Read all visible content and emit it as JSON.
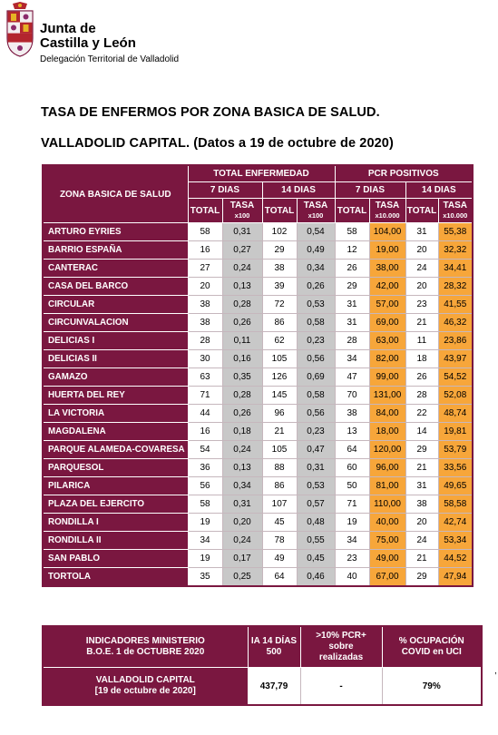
{
  "header": {
    "org_line1": "Junta de",
    "org_line2": "Castilla y León",
    "org_line3": "Delegación Territorial de Valladolid"
  },
  "title_line1": "TASA DE ENFERMOS POR ZONA BASICA DE SALUD.",
  "title_line2": "VALLADOLID CAPITAL. (Datos a 19 de octubre de 2020)",
  "table": {
    "zone_header": "ZONA BASICA DE SALUD",
    "group1": "TOTAL ENFERMEDAD",
    "group2": "PCR POSITIVOS",
    "days7": "7 DIAS",
    "days14": "14 DIAS",
    "total": "TOTAL",
    "tasa": "TASA",
    "x100": "x100",
    "x10000": "x10.000",
    "rows": [
      {
        "zone": "ARTURO EYRIES",
        "te7_total": "58",
        "te7_tasa": "0,31",
        "te14_total": "102",
        "te14_tasa": "0,54",
        "pcr7_total": "58",
        "pcr7_tasa": "104,00",
        "pcr14_total": "31",
        "pcr14_tasa": "55,38"
      },
      {
        "zone": "BARRIO ESPAÑA",
        "te7_total": "16",
        "te7_tasa": "0,27",
        "te14_total": "29",
        "te14_tasa": "0,49",
        "pcr7_total": "12",
        "pcr7_tasa": "19,00",
        "pcr14_total": "20",
        "pcr14_tasa": "32,32"
      },
      {
        "zone": "CANTERAC",
        "te7_total": "27",
        "te7_tasa": "0,24",
        "te14_total": "38",
        "te14_tasa": "0,34",
        "pcr7_total": "26",
        "pcr7_tasa": "38,00",
        "pcr14_total": "24",
        "pcr14_tasa": "34,41"
      },
      {
        "zone": "CASA DEL BARCO",
        "te7_total": "20",
        "te7_tasa": "0,13",
        "te14_total": "39",
        "te14_tasa": "0,26",
        "pcr7_total": "29",
        "pcr7_tasa": "42,00",
        "pcr14_total": "20",
        "pcr14_tasa": "28,32"
      },
      {
        "zone": "CIRCULAR",
        "te7_total": "38",
        "te7_tasa": "0,28",
        "te14_total": "72",
        "te14_tasa": "0,53",
        "pcr7_total": "31",
        "pcr7_tasa": "57,00",
        "pcr14_total": "23",
        "pcr14_tasa": "41,55"
      },
      {
        "zone": "CIRCUNVALACION",
        "te7_total": "38",
        "te7_tasa": "0,26",
        "te14_total": "86",
        "te14_tasa": "0,58",
        "pcr7_total": "31",
        "pcr7_tasa": "69,00",
        "pcr14_total": "21",
        "pcr14_tasa": "46,32"
      },
      {
        "zone": "DELICIAS I",
        "te7_total": "28",
        "te7_tasa": "0,11",
        "te14_total": "62",
        "te14_tasa": "0,23",
        "pcr7_total": "28",
        "pcr7_tasa": "63,00",
        "pcr14_total": "11",
        "pcr14_tasa": "23,86"
      },
      {
        "zone": "DELICIAS II",
        "te7_total": "30",
        "te7_tasa": "0,16",
        "te14_total": "105",
        "te14_tasa": "0,56",
        "pcr7_total": "34",
        "pcr7_tasa": "82,00",
        "pcr14_total": "18",
        "pcr14_tasa": "43,97"
      },
      {
        "zone": "GAMAZO",
        "te7_total": "63",
        "te7_tasa": "0,35",
        "te14_total": "126",
        "te14_tasa": "0,69",
        "pcr7_total": "47",
        "pcr7_tasa": "99,00",
        "pcr14_total": "26",
        "pcr14_tasa": "54,52"
      },
      {
        "zone": "HUERTA DEL REY",
        "te7_total": "71",
        "te7_tasa": "0,28",
        "te14_total": "145",
        "te14_tasa": "0,58",
        "pcr7_total": "70",
        "pcr7_tasa": "131,00",
        "pcr14_total": "28",
        "pcr14_tasa": "52,08"
      },
      {
        "zone": "LA VICTORIA",
        "te7_total": "44",
        "te7_tasa": "0,26",
        "te14_total": "96",
        "te14_tasa": "0,56",
        "pcr7_total": "38",
        "pcr7_tasa": "84,00",
        "pcr14_total": "22",
        "pcr14_tasa": "48,74"
      },
      {
        "zone": "MAGDALENA",
        "te7_total": "16",
        "te7_tasa": "0,18",
        "te14_total": "21",
        "te14_tasa": "0,23",
        "pcr7_total": "13",
        "pcr7_tasa": "18,00",
        "pcr14_total": "14",
        "pcr14_tasa": "19,81"
      },
      {
        "zone": "PARQUE ALAMEDA-COVARESA",
        "te7_total": "54",
        "te7_tasa": "0,24",
        "te14_total": "105",
        "te14_tasa": "0,47",
        "pcr7_total": "64",
        "pcr7_tasa": "120,00",
        "pcr14_total": "29",
        "pcr14_tasa": "53,79"
      },
      {
        "zone": "PARQUESOL",
        "te7_total": "36",
        "te7_tasa": "0,13",
        "te14_total": "88",
        "te14_tasa": "0,31",
        "pcr7_total": "60",
        "pcr7_tasa": "96,00",
        "pcr14_total": "21",
        "pcr14_tasa": "33,56"
      },
      {
        "zone": "PILARICA",
        "te7_total": "56",
        "te7_tasa": "0,34",
        "te14_total": "86",
        "te14_tasa": "0,53",
        "pcr7_total": "50",
        "pcr7_tasa": "81,00",
        "pcr14_total": "31",
        "pcr14_tasa": "49,65"
      },
      {
        "zone": "PLAZA DEL EJERCITO",
        "te7_total": "58",
        "te7_tasa": "0,31",
        "te14_total": "107",
        "te14_tasa": "0,57",
        "pcr7_total": "71",
        "pcr7_tasa": "110,00",
        "pcr14_total": "38",
        "pcr14_tasa": "58,58"
      },
      {
        "zone": "RONDILLA I",
        "te7_total": "19",
        "te7_tasa": "0,20",
        "te14_total": "45",
        "te14_tasa": "0,48",
        "pcr7_total": "19",
        "pcr7_tasa": "40,00",
        "pcr14_total": "20",
        "pcr14_tasa": "42,74"
      },
      {
        "zone": "RONDILLA II",
        "te7_total": "34",
        "te7_tasa": "0,24",
        "te14_total": "78",
        "te14_tasa": "0,55",
        "pcr7_total": "34",
        "pcr7_tasa": "75,00",
        "pcr14_total": "24",
        "pcr14_tasa": "53,34"
      },
      {
        "zone": "SAN PABLO",
        "te7_total": "19",
        "te7_tasa": "0,17",
        "te14_total": "49",
        "te14_tasa": "0,45",
        "pcr7_total": "23",
        "pcr7_tasa": "49,00",
        "pcr14_total": "21",
        "pcr14_tasa": "44,52"
      },
      {
        "zone": "TORTOLA",
        "te7_total": "35",
        "te7_tasa": "0,25",
        "te14_total": "64",
        "te14_tasa": "0,46",
        "pcr7_total": "40",
        "pcr7_tasa": "67,00",
        "pcr14_total": "29",
        "pcr14_tasa": "47,94"
      }
    ]
  },
  "indicators": {
    "h1_line1": "INDICADORES MINISTERIO",
    "h1_line2": "B.O.E.   1 de OCTUBRE 2020",
    "h2_line1": "IA 14 DÍAS",
    "h2_line2": "500",
    "h3_line1": ">10% PCR+",
    "h3_line2": "sobre",
    "h3_line3": "realizadas",
    "h4_line1": "% OCUPACIÓN",
    "h4_line2": "COVID en UCI",
    "row_label1": "VALLADOLID CAPITAL",
    "row_label2": "[19 de octubre de 2020]",
    "ia14": "437,79",
    "pcr10": "-",
    "uci": "79%"
  },
  "colors": {
    "brand": "#7a1740",
    "highlight_orange": "#f7a63a",
    "highlight_gray": "#c8c8c8"
  },
  "margin_mark": ","
}
